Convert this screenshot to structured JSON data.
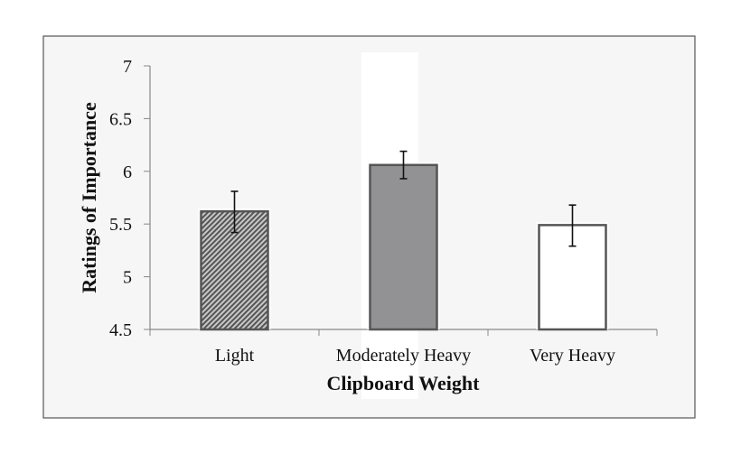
{
  "chart_data": {
    "type": "bar",
    "title": "",
    "xlabel": "Clipboard Weight",
    "ylabel": "Ratings of Importance",
    "categories": [
      "Light",
      "Moderately Heavy",
      "Very Heavy"
    ],
    "values": [
      5.62,
      6.06,
      5.49
    ],
    "error_bars": [
      {
        "low": 5.42,
        "high": 5.81
      },
      {
        "low": 5.93,
        "high": 6.19
      },
      {
        "low": 5.29,
        "high": 5.68
      }
    ],
    "bar_fills": [
      "hatched",
      "#929295",
      "#ffffff"
    ],
    "ylim": [
      4.5,
      7
    ],
    "yticks": [
      "4.5",
      "5",
      "5.5",
      "6",
      "6.5",
      "7"
    ],
    "grid": false,
    "legend": "none"
  }
}
